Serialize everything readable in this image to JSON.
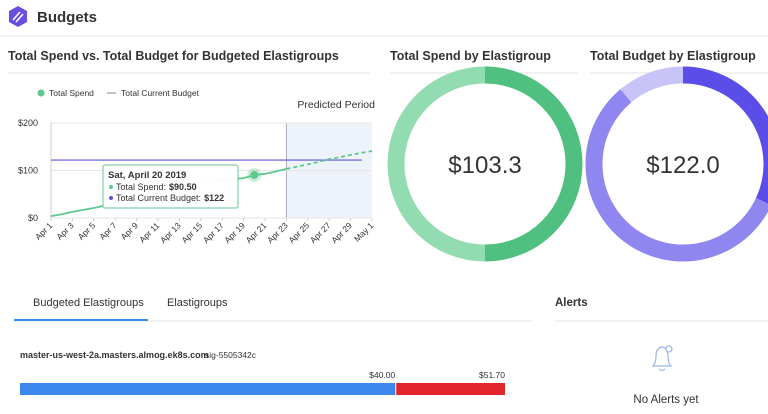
{
  "header": {
    "title": "Budgets"
  },
  "chart_data": [
    {
      "type": "line",
      "title": "Total Spend vs. Total Budget for Budgeted Elastigroups",
      "categories": [
        "Apr 1",
        null,
        "Apr 3",
        null,
        "Apr 5",
        null,
        "Apr 7",
        null,
        "Apr 9",
        null,
        "Apr 11",
        null,
        "Apr 13",
        null,
        "Apr 15",
        null,
        "Apr 17",
        null,
        "Apr 19",
        null,
        "Apr 21",
        null,
        "Apr 23",
        null,
        "Apr 25",
        null,
        "Apr 27",
        null,
        "Apr 29",
        null,
        "May 1"
      ],
      "series": [
        {
          "name": "Total Spend",
          "color": "#5ec88d",
          "values": [
            4,
            8,
            13,
            17,
            21,
            26,
            32,
            39,
            46,
            52,
            59,
            63,
            67,
            72,
            76,
            78,
            80,
            82,
            84,
            90.5,
            93,
            98,
            103.3,
            null,
            null,
            null,
            null,
            null,
            null,
            null,
            null
          ],
          "predicted_values": [
            null,
            null,
            null,
            null,
            null,
            null,
            null,
            null,
            null,
            null,
            null,
            null,
            null,
            null,
            null,
            null,
            null,
            null,
            null,
            null,
            null,
            null,
            103.3,
            108,
            113,
            118,
            124,
            128,
            133,
            137,
            141
          ]
        },
        {
          "name": "Total Current Budget",
          "color": "#5a55e0",
          "value": 122
        }
      ],
      "ylim": [
        0,
        200
      ],
      "yticks": [
        {
          "value": 0,
          "label": "$0"
        },
        {
          "value": 100,
          "label": "$100"
        },
        {
          "value": 200,
          "label": "$200"
        }
      ],
      "grid": true,
      "predicted_period": {
        "label": "Predicted Period",
        "start": 22
      },
      "tooltip": {
        "index": 19,
        "title": "Sat, April 20 2019",
        "lines": [
          {
            "label": "Total Spend:",
            "value": "$90.50"
          },
          {
            "label": "Total Current Budget:",
            "value": "$122"
          }
        ]
      }
    },
    {
      "type": "pie",
      "title": "Total Spend by Elastigroup",
      "total": 103.3,
      "total_label": "$103.3",
      "values": [
        51.65,
        51.65
      ],
      "colors": [
        "#4fc07f",
        "#93dcb1"
      ]
    },
    {
      "type": "pie",
      "title": "Total Budget by Elastigroup",
      "total": 122,
      "total_label": "$122.0",
      "values": [
        39,
        69.5,
        13.5
      ],
      "colors": [
        "#5b4ee8",
        "#8f86f0",
        "#c9c4f7"
      ]
    }
  ],
  "tabs": [
    "Budgeted Elastigroups",
    "Elastigroups"
  ],
  "groups": [
    {
      "name": "master-us-west-2a.masters.almog.ek8s.com",
      "id": "sig-5505342c",
      "spend": 40,
      "spend_label": "$40.00",
      "budget": 51.7,
      "budget_label": "$51.70"
    }
  ],
  "alerts": {
    "title": "Alerts",
    "empty": "No Alerts yet"
  }
}
